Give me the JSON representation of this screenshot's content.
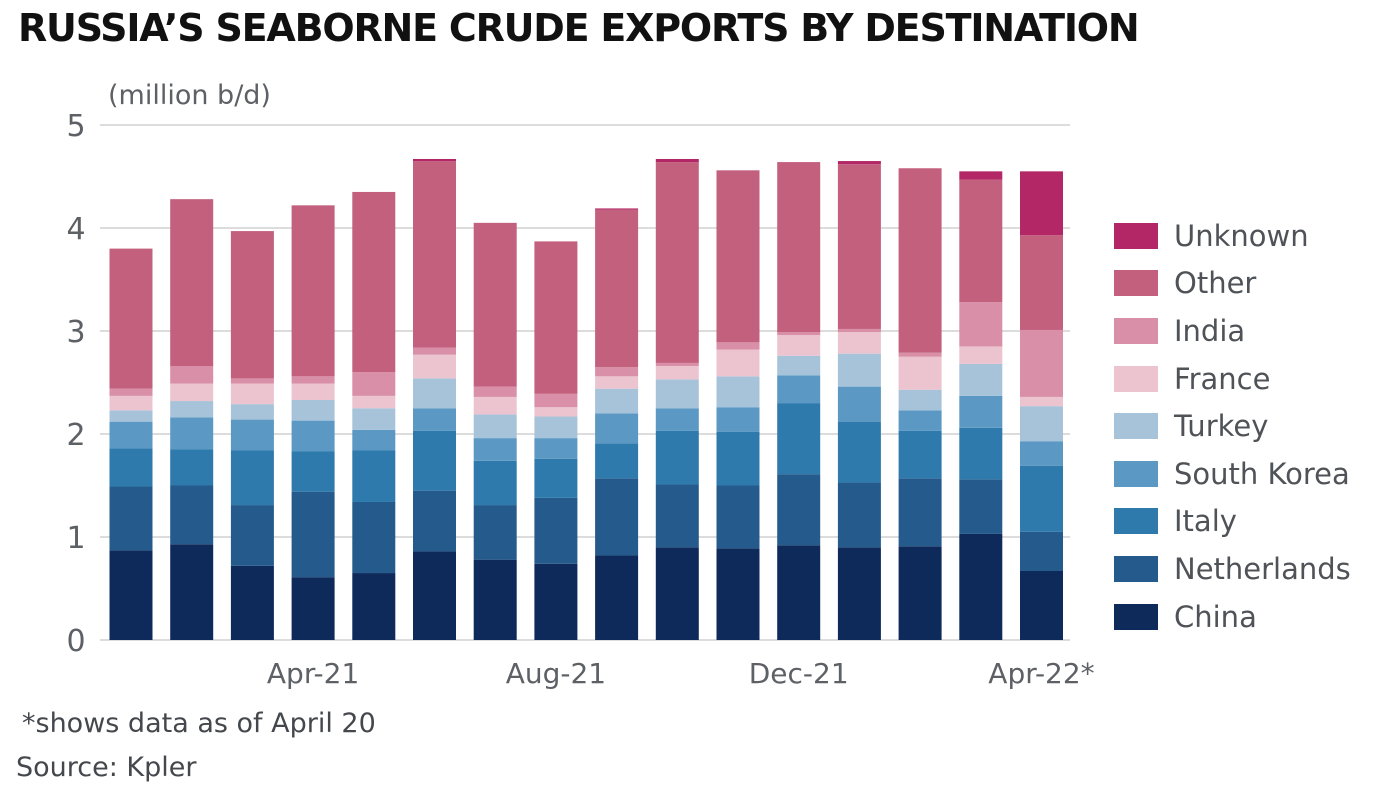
{
  "title": "RUSSIA’S SEABORNE CRUDE EXPORTS BY DESTINATION",
  "unit_label": "(million b/d)",
  "footnote": "*shows data as of April 20",
  "source": "Source: Kpler",
  "chart_data": {
    "type": "bar",
    "stacked": true,
    "categories": [
      "Jan-21",
      "Feb-21",
      "Mar-21",
      "Apr-21",
      "May-21",
      "Jun-21",
      "Jul-21",
      "Aug-21",
      "Sep-21",
      "Oct-21",
      "Nov-21",
      "Dec-21",
      "Jan-22",
      "Feb-22",
      "Mar-22",
      "Apr-22*"
    ],
    "x_tick_labels": [
      {
        "category": "Apr-21",
        "label": "Apr-21"
      },
      {
        "category": "Aug-21",
        "label": "Aug-21"
      },
      {
        "category": "Dec-21",
        "label": "Dec-21"
      },
      {
        "category": "Apr-22*",
        "label": "Apr-22*"
      }
    ],
    "y_ticks": [
      "0",
      "1",
      "2",
      "3",
      "4",
      "5"
    ],
    "ylim": [
      0,
      5
    ],
    "grid": "horizontal",
    "legend_position": "right",
    "series": [
      {
        "name": "China",
        "color": "#0e2a5a",
        "values": [
          0.87,
          0.93,
          0.72,
          0.61,
          0.65,
          0.86,
          0.78,
          0.74,
          0.82,
          0.9,
          0.89,
          0.92,
          0.9,
          0.91,
          1.03,
          0.67
        ]
      },
      {
        "name": "Netherlands",
        "color": "#255b8c",
        "values": [
          0.62,
          0.57,
          0.59,
          0.83,
          0.69,
          0.59,
          0.53,
          0.64,
          0.75,
          0.61,
          0.61,
          0.69,
          0.63,
          0.66,
          0.53,
          0.38
        ]
      },
      {
        "name": "Italy",
        "color": "#2e7aad",
        "values": [
          0.37,
          0.35,
          0.53,
          0.39,
          0.5,
          0.58,
          0.43,
          0.38,
          0.34,
          0.52,
          0.52,
          0.69,
          0.59,
          0.46,
          0.5,
          0.64
        ]
      },
      {
        "name": "South Korea",
        "color": "#5b98c3",
        "values": [
          0.26,
          0.31,
          0.3,
          0.3,
          0.2,
          0.22,
          0.22,
          0.2,
          0.29,
          0.22,
          0.24,
          0.27,
          0.34,
          0.2,
          0.31,
          0.24
        ]
      },
      {
        "name": "Turkey",
        "color": "#a7c3da",
        "values": [
          0.11,
          0.16,
          0.15,
          0.2,
          0.21,
          0.29,
          0.23,
          0.21,
          0.24,
          0.28,
          0.3,
          0.19,
          0.32,
          0.2,
          0.31,
          0.34
        ]
      },
      {
        "name": "France",
        "color": "#ecc4d0",
        "values": [
          0.14,
          0.17,
          0.2,
          0.16,
          0.12,
          0.23,
          0.17,
          0.09,
          0.12,
          0.13,
          0.26,
          0.2,
          0.21,
          0.32,
          0.17,
          0.09
        ]
      },
      {
        "name": "India",
        "color": "#d88fa7",
        "values": [
          0.07,
          0.17,
          0.05,
          0.07,
          0.23,
          0.07,
          0.1,
          0.13,
          0.09,
          0.03,
          0.07,
          0.03,
          0.03,
          0.04,
          0.43,
          0.65
        ]
      },
      {
        "name": "Other",
        "color": "#c2607e",
        "values": [
          1.36,
          1.62,
          1.43,
          1.66,
          1.75,
          1.81,
          1.59,
          1.48,
          1.53,
          1.95,
          1.67,
          1.65,
          1.6,
          1.79,
          1.19,
          0.92
        ]
      },
      {
        "name": "Unknown",
        "color": "#b32767",
        "values": [
          0,
          0,
          0,
          0,
          0,
          0.02,
          0,
          0,
          0.01,
          0.03,
          0,
          0,
          0.03,
          0,
          0.08,
          0.62
        ]
      }
    ]
  }
}
